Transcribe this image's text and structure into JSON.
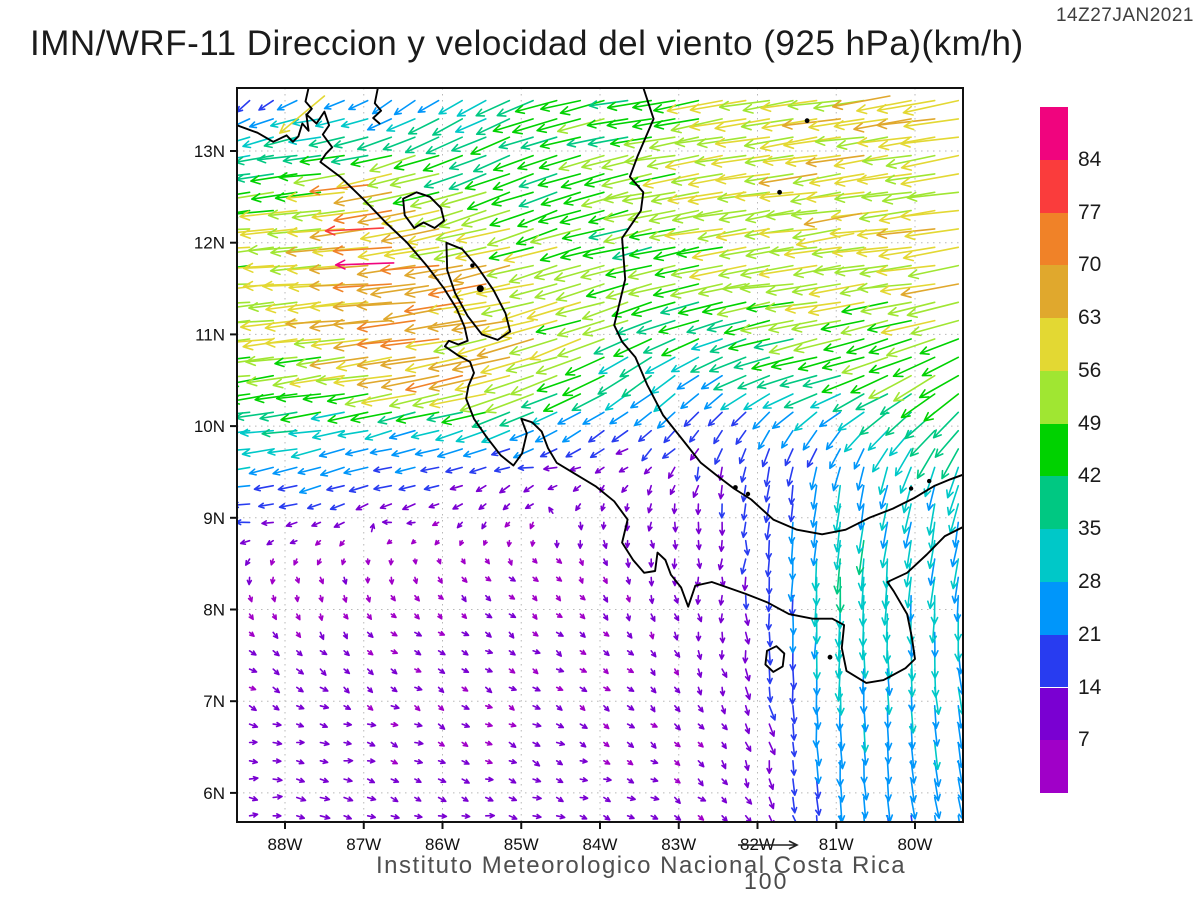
{
  "title": "IMN/WRF-11 Direccion y velocidad del viento (925 hPa)(km/h)",
  "timestamp": "14Z27JAN2021",
  "caption": "Instituto Meteorologico Nacional Costa Rica",
  "reference_vector": {
    "label": "100",
    "speed": 100
  },
  "axes": {
    "lat": {
      "values": [
        13,
        12,
        11,
        10,
        9,
        8,
        7,
        6
      ],
      "labels": [
        "13N",
        "12N",
        "11N",
        "10N",
        "9N",
        "8N",
        "7N",
        "6N"
      ]
    },
    "lon": {
      "values": [
        88,
        87,
        86,
        85,
        84,
        83,
        82,
        81,
        80
      ],
      "labels": [
        "88W",
        "87W",
        "86W",
        "85W",
        "84W",
        "83W",
        "82W",
        "81W",
        "80W"
      ]
    }
  },
  "colorbar": {
    "labels": [
      84,
      77,
      70,
      63,
      56,
      49,
      42,
      35,
      28,
      21,
      14,
      7
    ],
    "colors_top_to_bottom": [
      "#F0047E",
      "#FA3C3C",
      "#F08228",
      "#E0A82D",
      "#E3D833",
      "#A0E632",
      "#00D200",
      "#00C882",
      "#00C8C8",
      "#0096FA",
      "#283CF0",
      "#7A00D2",
      "#A000C8"
    ]
  },
  "chart_data": {
    "type": "vector_field",
    "title": "IMN/WRF-11 Direccion y velocidad del viento (925 hPa)(km/h)",
    "valid_time": "14Z27JAN2021",
    "level": "925 hPa",
    "speed_unit": "km/h",
    "lon_w_range": [
      88.61,
      79.39
    ],
    "lat_range": [
      5.68,
      13.69
    ],
    "arrow_step": {
      "lon": 0.3,
      "lat": 0.2
    },
    "speed_bins": [
      7,
      14,
      21,
      28,
      35,
      42,
      49,
      56,
      63,
      70,
      77,
      84
    ],
    "bin_colors": [
      "#A000C8",
      "#7A00D2",
      "#283CF0",
      "#0096FA",
      "#00C8C8",
      "#00C882",
      "#00D200",
      "#A0E632",
      "#E3D833",
      "#E0A82D",
      "#F08228",
      "#FA3C3C",
      "#F0047E"
    ],
    "grid": {
      "lon_w": [
        88.6,
        87.5,
        86.5,
        85.5,
        84.5,
        83.5,
        82.5,
        81.7,
        81.0,
        80.2,
        79.4
      ],
      "lat": [
        13.6,
        12.5,
        11.5,
        10.5,
        10.0,
        9.5,
        9.0,
        8.5,
        7.5,
        6.5,
        5.7
      ],
      "u": [
        [
          -8,
          -22,
          -18,
          -26,
          -42,
          -45,
          -55,
          -57,
          -58,
          -58,
          -60
        ],
        [
          -48,
          -55,
          -62,
          -45,
          -42,
          -45,
          -55,
          -56,
          -56,
          -57,
          -58
        ],
        [
          -57,
          -60,
          -75,
          -64,
          -55,
          -45,
          -50,
          -55,
          -55,
          -55,
          -56
        ],
        [
          -44,
          -50,
          -60,
          -62,
          -50,
          -28,
          -22,
          -36,
          -40,
          -42,
          -36
        ],
        [
          -37,
          -34,
          -28,
          -32,
          -20,
          -15,
          -10,
          -12,
          -15,
          -22,
          -26
        ],
        [
          -27,
          -24,
          -19,
          -15,
          -11,
          -7,
          -2,
          -3,
          -5,
          -8,
          -10
        ],
        [
          -15,
          -11,
          -10,
          -6,
          -1,
          0,
          -1,
          -2,
          -3,
          -5,
          -6
        ],
        [
          -2,
          0,
          2,
          4,
          4,
          1,
          0,
          -1,
          -2,
          -3,
          -4
        ],
        [
          6,
          6,
          6,
          6,
          6,
          5,
          2,
          0,
          -1,
          1,
          3
        ],
        [
          8,
          8,
          7,
          7,
          7,
          6,
          5,
          2,
          1,
          2,
          4
        ],
        [
          9,
          9,
          8,
          8,
          8,
          7,
          6,
          3,
          2,
          3,
          5
        ]
      ],
      "v": [
        [
          -12,
          -6,
          -14,
          -16,
          -12,
          -8,
          -10,
          -8,
          -8,
          -8,
          -12
        ],
        [
          -5,
          -5,
          -10,
          -15,
          -15,
          -10,
          -8,
          -8,
          -8,
          -8,
          -8
        ],
        [
          -3,
          -5,
          -5,
          -10,
          -15,
          -12,
          -10,
          -8,
          -8,
          -8,
          -10
        ],
        [
          -5,
          -8,
          -10,
          -15,
          -18,
          -20,
          -15,
          -15,
          -12,
          -20,
          -25
        ],
        [
          -3,
          -5,
          -8,
          -10,
          -12,
          -12,
          -14,
          -18,
          -18,
          -22,
          -30
        ],
        [
          -4,
          -8,
          -4,
          -4,
          -3,
          -6,
          -15,
          -19,
          -26,
          -27,
          -28
        ],
        [
          0,
          -3,
          -1,
          -5,
          -8,
          -8,
          -12,
          -18,
          -28,
          -29,
          -29
        ],
        [
          -7,
          -7,
          -6,
          -5,
          -5,
          -8,
          -10,
          -20,
          -40,
          -32,
          -30
        ],
        [
          -5,
          -5,
          -4,
          -4,
          -4,
          -5,
          -9,
          -18,
          -32,
          -28,
          -27
        ],
        [
          -1,
          -2,
          -3,
          -3,
          -3,
          -4,
          -6,
          -14,
          -26,
          -24,
          -26
        ],
        [
          -1,
          -1,
          -2,
          -2,
          -2,
          -3,
          -4,
          -12,
          -23,
          -22,
          -24
        ]
      ]
    },
    "overrides": [
      {
        "lon_w": 86.62,
        "lat": 11.78,
        "u": -85,
        "v": -3
      },
      {
        "lon_w": 86.75,
        "lat": 12.16,
        "u": -77,
        "v": -4
      },
      {
        "lon_w": 86.95,
        "lat": 12.63,
        "u": -70,
        "v": -8
      },
      {
        "lon_w": 87.5,
        "lat": 13.6,
        "u": -48,
        "v": -40
      },
      {
        "lon_w": 86.18,
        "lat": 11.53,
        "u": -66,
        "v": -10
      },
      {
        "lon_w": 86.02,
        "lat": 11.28,
        "u": -65,
        "v": -12
      },
      {
        "lon_w": 80.32,
        "lat": 13.6,
        "u": -64,
        "v": -12
      },
      {
        "lon_w": 80.68,
        "lat": 12.32,
        "u": -62,
        "v": -12
      },
      {
        "lon_w": 80.78,
        "lat": 12.1,
        "u": -61,
        "v": -12
      },
      {
        "lon_w": 86.9,
        "lat": 8.85,
        "u": 2,
        "v": 8
      },
      {
        "lon_w": 84.6,
        "lat": 9.05,
        "u": -4,
        "v": 6
      }
    ],
    "map": {
      "paths": [
        {
          "name": "pacific-coast",
          "closed": false,
          "pts": [
            [
              88.61,
              13.28
            ],
            [
              88.35,
              13.2
            ],
            [
              88.15,
              13.1
            ],
            [
              87.98,
              13.17
            ],
            [
              87.9,
              13.1
            ],
            [
              87.83,
              13.16
            ],
            [
              87.78,
              13.3
            ],
            [
              87.7,
              13.22
            ],
            [
              87.73,
              13.4
            ],
            [
              87.6,
              13.3
            ],
            [
              87.5,
              13.43
            ],
            [
              87.44,
              13.28
            ],
            [
              87.52,
              13.18
            ],
            [
              87.4,
              13.04
            ],
            [
              87.48,
              12.97
            ],
            [
              87.55,
              12.88
            ],
            [
              87.3,
              12.72
            ],
            [
              87.0,
              12.47
            ],
            [
              86.72,
              12.22
            ],
            [
              86.45,
              12.0
            ],
            [
              86.2,
              11.75
            ],
            [
              85.98,
              11.5
            ],
            [
              85.82,
              11.28
            ],
            [
              85.72,
              11.08
            ],
            [
              85.68,
              10.93
            ],
            [
              85.8,
              10.89
            ],
            [
              85.92,
              10.93
            ],
            [
              85.97,
              10.87
            ],
            [
              85.8,
              10.77
            ],
            [
              85.65,
              10.7
            ],
            [
              85.6,
              10.58
            ],
            [
              85.67,
              10.44
            ],
            [
              85.7,
              10.3
            ],
            [
              85.6,
              10.08
            ],
            [
              85.44,
              9.88
            ],
            [
              85.26,
              9.68
            ],
            [
              85.1,
              9.57
            ],
            [
              84.99,
              9.7
            ],
            [
              84.93,
              9.92
            ],
            [
              85.0,
              10.08
            ],
            [
              84.86,
              10.04
            ],
            [
              84.74,
              9.94
            ],
            [
              84.66,
              9.76
            ],
            [
              84.55,
              9.6
            ],
            [
              84.3,
              9.47
            ],
            [
              84.05,
              9.34
            ],
            [
              83.82,
              9.18
            ],
            [
              83.65,
              8.98
            ],
            [
              83.72,
              8.73
            ],
            [
              83.58,
              8.54
            ],
            [
              83.44,
              8.4
            ],
            [
              83.3,
              8.42
            ],
            [
              83.27,
              8.62
            ],
            [
              83.17,
              8.54
            ],
            [
              83.1,
              8.38
            ],
            [
              82.97,
              8.24
            ],
            [
              82.88,
              8.03
            ],
            [
              82.79,
              8.26
            ],
            [
              82.58,
              8.3
            ],
            [
              82.38,
              8.24
            ],
            [
              82.15,
              8.17
            ],
            [
              81.88,
              8.08
            ],
            [
              81.6,
              7.95
            ],
            [
              81.3,
              7.9
            ],
            [
              81.05,
              7.9
            ],
            [
              80.9,
              7.83
            ],
            [
              80.93,
              7.58
            ],
            [
              80.87,
              7.33
            ],
            [
              80.62,
              7.2
            ],
            [
              80.4,
              7.23
            ],
            [
              80.12,
              7.36
            ],
            [
              80.0,
              7.46
            ],
            [
              80.04,
              7.7
            ],
            [
              80.1,
              7.95
            ],
            [
              80.27,
              8.2
            ],
            [
              80.35,
              8.3
            ],
            [
              80.1,
              8.4
            ],
            [
              79.85,
              8.6
            ],
            [
              79.62,
              8.8
            ],
            [
              79.39,
              8.9
            ]
          ]
        },
        {
          "name": "caribbean-coast",
          "closed": false,
          "pts": [
            [
              83.45,
              13.69
            ],
            [
              83.32,
              13.35
            ],
            [
              83.52,
              12.95
            ],
            [
              83.62,
              12.72
            ],
            [
              83.45,
              12.55
            ],
            [
              83.48,
              12.35
            ],
            [
              83.72,
              12.05
            ],
            [
              83.68,
              11.6
            ],
            [
              83.82,
              11.1
            ],
            [
              83.72,
              10.92
            ],
            [
              83.55,
              10.75
            ],
            [
              83.4,
              10.45
            ],
            [
              83.2,
              10.12
            ],
            [
              82.95,
              9.85
            ],
            [
              82.72,
              9.6
            ],
            [
              82.5,
              9.45
            ],
            [
              82.3,
              9.32
            ],
            [
              82.08,
              9.2
            ],
            [
              81.8,
              8.98
            ],
            [
              81.5,
              8.87
            ],
            [
              81.18,
              8.82
            ],
            [
              80.88,
              8.87
            ],
            [
              80.58,
              9.0
            ],
            [
              80.28,
              9.1
            ],
            [
              80.0,
              9.22
            ],
            [
              79.75,
              9.35
            ],
            [
              79.55,
              9.42
            ],
            [
              79.39,
              9.47
            ]
          ]
        },
        {
          "name": "fonseca-spur",
          "closed": false,
          "pts": [
            [
              87.7,
              13.69
            ],
            [
              87.74,
              13.54
            ],
            [
              87.66,
              13.46
            ],
            [
              87.72,
              13.4
            ]
          ]
        },
        {
          "name": "honduras-spur",
          "closed": false,
          "pts": [
            [
              86.82,
              13.69
            ],
            [
              86.86,
              13.52
            ],
            [
              86.78,
              13.44
            ],
            [
              86.88,
              13.36
            ],
            [
              86.8,
              13.3
            ]
          ]
        },
        {
          "name": "lake-managua",
          "closed": true,
          "pts": [
            [
              86.5,
              12.48
            ],
            [
              86.33,
              12.55
            ],
            [
              86.16,
              12.5
            ],
            [
              86.02,
              12.38
            ],
            [
              85.98,
              12.24
            ],
            [
              86.1,
              12.16
            ],
            [
              86.24,
              12.22
            ],
            [
              86.36,
              12.16
            ],
            [
              86.48,
              12.3
            ]
          ]
        },
        {
          "name": "lake-nicaragua",
          "closed": true,
          "pts": [
            [
              85.95,
              12.0
            ],
            [
              85.75,
              11.93
            ],
            [
              85.55,
              11.73
            ],
            [
              85.35,
              11.48
            ],
            [
              85.2,
              11.23
            ],
            [
              85.14,
              11.03
            ],
            [
              85.3,
              10.94
            ],
            [
              85.5,
              11.0
            ],
            [
              85.68,
              11.2
            ],
            [
              85.84,
              11.45
            ],
            [
              85.94,
              11.7
            ]
          ]
        },
        {
          "name": "coiba-island",
          "closed": true,
          "pts": [
            [
              81.88,
              7.55
            ],
            [
              81.76,
              7.6
            ],
            [
              81.66,
              7.52
            ],
            [
              81.68,
              7.38
            ],
            [
              81.8,
              7.32
            ],
            [
              81.9,
              7.4
            ]
          ]
        }
      ],
      "island_dots": [
        {
          "name": "ometepe",
          "lon_w": 85.52,
          "lat": 11.5,
          "r": 3.5
        },
        {
          "name": "zapatera",
          "lon_w": 85.62,
          "lat": 11.75,
          "r": 2.2
        },
        {
          "name": "san-andres",
          "lon_w": 81.72,
          "lat": 12.55,
          "r": 2.4
        },
        {
          "name": "providencia",
          "lon_w": 81.37,
          "lat": 13.33,
          "r": 2.4
        },
        {
          "name": "cebaco",
          "lon_w": 81.08,
          "lat": 7.48,
          "r": 2.4
        },
        {
          "name": "bocas-1",
          "lon_w": 82.28,
          "lat": 9.33,
          "r": 2.4
        },
        {
          "name": "bocas-2",
          "lon_w": 82.12,
          "lat": 9.26,
          "r": 2.2
        },
        {
          "name": "san-blas-1",
          "lon_w": 80.05,
          "lat": 9.32,
          "r": 2.2
        },
        {
          "name": "san-blas-2",
          "lon_w": 79.82,
          "lat": 9.4,
          "r": 2.2
        }
      ]
    }
  }
}
